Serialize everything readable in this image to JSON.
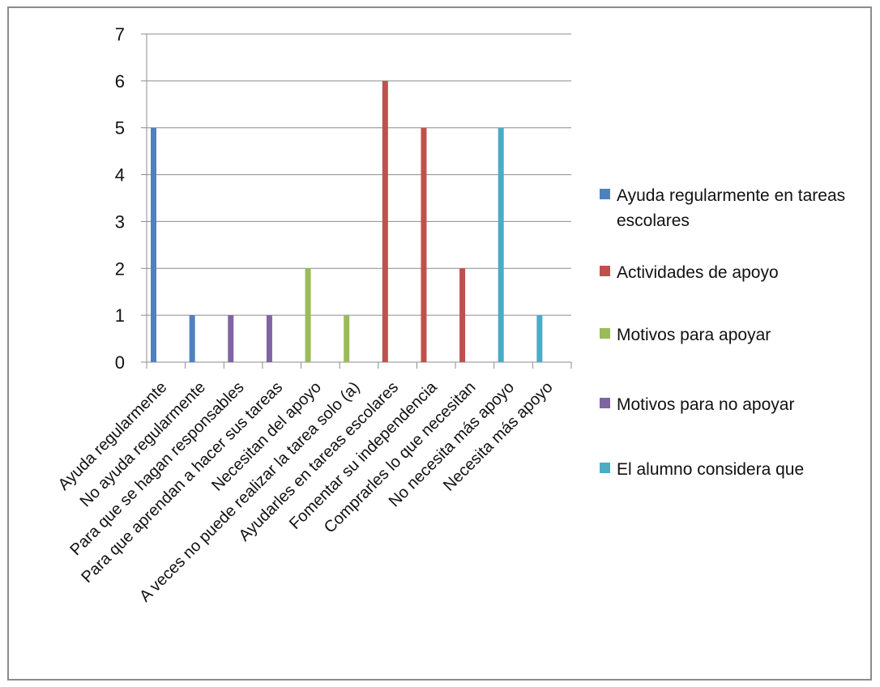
{
  "chart_data": {
    "type": "bar",
    "categories": [
      "Ayuda regularmente",
      "No ayuda regularmente",
      "Para que se hagan responsables",
      "Para que aprendan a hacer sus tareas",
      "Necesitan del apoyo",
      "A veces no puede realizar la tarea solo (a)",
      "Ayudarles en tareas escolares",
      "Fomentar su independencia",
      "Comprarles lo que necesitan",
      "No necesita más apoyo",
      "Necesita más apoyo"
    ],
    "series": [
      {
        "name": "Ayuda regularmente en tareas escolares",
        "color": "#4f81bd",
        "values": [
          5,
          1,
          null,
          null,
          null,
          null,
          null,
          null,
          null,
          null,
          null
        ]
      },
      {
        "name": "Actividades de apoyo",
        "color": "#c0504d",
        "values": [
          null,
          null,
          null,
          null,
          null,
          null,
          6,
          5,
          2,
          null,
          null
        ]
      },
      {
        "name": "Motivos para apoyar",
        "color": "#9bbb59",
        "values": [
          null,
          null,
          null,
          null,
          2,
          1,
          null,
          null,
          null,
          null,
          null
        ]
      },
      {
        "name": "Motivos para no apoyar",
        "color": "#8064a2",
        "values": [
          null,
          null,
          1,
          1,
          null,
          null,
          null,
          null,
          null,
          null,
          null
        ]
      },
      {
        "name": "El alumno considera que",
        "color": "#4bacc6",
        "values": [
          null,
          null,
          null,
          null,
          null,
          null,
          null,
          null,
          null,
          5,
          1
        ]
      }
    ],
    "ylim": [
      0,
      7
    ],
    "yticks": [
      "0",
      "1",
      "2",
      "3",
      "4",
      "5",
      "6",
      "7"
    ],
    "grid": true,
    "legend_position": "right"
  }
}
